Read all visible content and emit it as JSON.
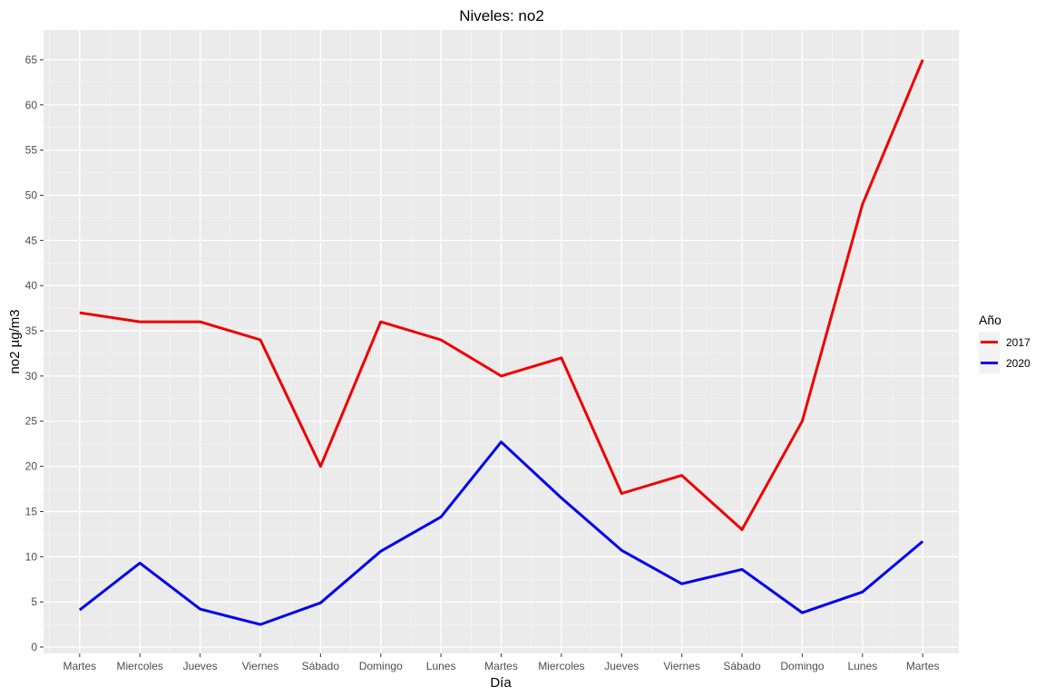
{
  "chart_data": {
    "type": "line",
    "title": "Niveles: no2",
    "xlabel": "Día",
    "ylabel": "no2 µg/m3",
    "categories": [
      "Martes",
      "Miercoles",
      "Jueves",
      "Viernes",
      "Sábado",
      "Domingo",
      "Lunes",
      "Martes",
      "Miercoles",
      "Jueves",
      "Viernes",
      "Sábado",
      "Domingo",
      "Lunes",
      "Martes"
    ],
    "ylim": [
      -0.7,
      68.3
    ],
    "yticks": [
      0,
      5,
      10,
      15,
      20,
      25,
      30,
      35,
      40,
      45,
      50,
      55,
      60,
      65
    ],
    "grid": true,
    "legend": {
      "title": "Año",
      "position": "right"
    },
    "series": [
      {
        "name": "2017",
        "color": "#ee0000",
        "values": [
          37,
          36,
          36,
          34,
          20,
          36,
          34,
          30,
          32,
          17,
          19,
          13,
          25,
          49,
          65
        ]
      },
      {
        "name": "2020",
        "color": "#0000ee",
        "values": [
          4.1,
          9.3,
          4.2,
          2.5,
          4.9,
          10.6,
          14.4,
          22.7,
          16.5,
          10.7,
          7.0,
          8.6,
          3.8,
          6.1,
          11.7
        ]
      }
    ]
  }
}
